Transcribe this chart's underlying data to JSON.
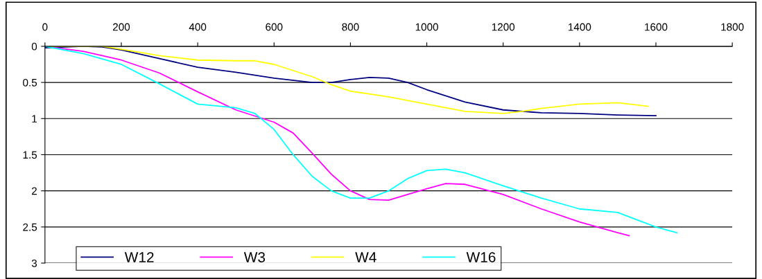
{
  "chart_data": {
    "type": "line",
    "xlim": [
      0,
      1800
    ],
    "xticks": [
      0,
      200,
      400,
      600,
      800,
      1000,
      1200,
      1400,
      1600,
      1800
    ],
    "ylim": [
      3,
      0
    ],
    "yticks": [
      0,
      0.5,
      1,
      1.5,
      2,
      2.5,
      3
    ],
    "grid": "y",
    "legend": "bottom left",
    "marker": "none",
    "line_style": "solid",
    "series": [
      {
        "name": "W12",
        "color": "#000080",
        "x": [
          0,
          100,
          150,
          200,
          300,
          400,
          500,
          600,
          700,
          750,
          800,
          850,
          900,
          950,
          1000,
          1100,
          1200,
          1300,
          1400,
          1500,
          1600
        ],
        "values": [
          0.02,
          0,
          0.01,
          0.05,
          0.17,
          0.29,
          0.36,
          0.44,
          0.5,
          0.5,
          0.46,
          0.43,
          0.44,
          0.5,
          0.6,
          0.77,
          0.88,
          0.92,
          0.93,
          0.95,
          0.96
        ]
      },
      {
        "name": "W3",
        "color": "#ff00ff",
        "x": [
          0,
          100,
          200,
          300,
          400,
          500,
          600,
          650,
          700,
          750,
          800,
          850,
          900,
          950,
          1000,
          1050,
          1100,
          1200,
          1300,
          1400,
          1500,
          1530
        ],
        "values": [
          0,
          0.07,
          0.19,
          0.37,
          0.63,
          0.88,
          1.05,
          1.2,
          1.48,
          1.77,
          2.0,
          2.12,
          2.13,
          2.05,
          1.97,
          1.9,
          1.91,
          2.05,
          2.25,
          2.43,
          2.58,
          2.62
        ]
      },
      {
        "name": "W4",
        "color": "#ffff00",
        "x": [
          0,
          150,
          200,
          300,
          400,
          500,
          550,
          600,
          700,
          750,
          800,
          900,
          1000,
          1100,
          1200,
          1250,
          1300,
          1400,
          1500,
          1580
        ],
        "values": [
          0,
          0,
          0.04,
          0.13,
          0.19,
          0.2,
          0.2,
          0.25,
          0.42,
          0.53,
          0.62,
          0.7,
          0.8,
          0.9,
          0.93,
          0.9,
          0.86,
          0.8,
          0.78,
          0.83
        ]
      },
      {
        "name": "W16",
        "color": "#00ffff",
        "x": [
          0,
          100,
          200,
          300,
          400,
          500,
          550,
          600,
          650,
          700,
          750,
          800,
          850,
          900,
          950,
          1000,
          1050,
          1100,
          1200,
          1300,
          1400,
          1500,
          1600,
          1655
        ],
        "values": [
          0,
          0.1,
          0.25,
          0.52,
          0.8,
          0.85,
          0.93,
          1.15,
          1.5,
          1.8,
          2.0,
          2.1,
          2.1,
          2.0,
          1.83,
          1.72,
          1.7,
          1.75,
          1.93,
          2.1,
          2.25,
          2.3,
          2.5,
          2.58
        ]
      }
    ]
  }
}
